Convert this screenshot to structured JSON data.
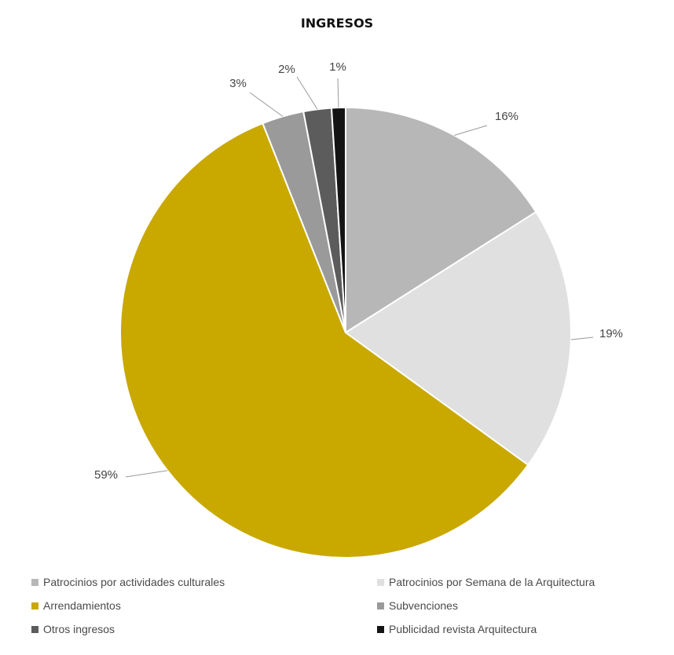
{
  "chart_data": {
    "type": "pie",
    "title": "INGRESOS",
    "start_angle_deg": 0,
    "direction": "clockwise",
    "slices": [
      {
        "name": "Patrocinios por actividades culturales",
        "value": 16,
        "label": "16%",
        "color": "#b7b7b7"
      },
      {
        "name": "Patrocinios por Semana de la Arquitectura",
        "value": 19,
        "label": "19%",
        "color": "#e0e0e0"
      },
      {
        "name": "Arrendamientos",
        "value": 59,
        "label": "59%",
        "color": "#c9a800"
      },
      {
        "name": "Subvenciones",
        "value": 3,
        "label": "3%",
        "color": "#9a9a9a"
      },
      {
        "name": "Otros ingresos",
        "value": 2,
        "label": "2%",
        "color": "#5c5c5c"
      },
      {
        "name": "Publicidad revista Arquitectura",
        "value": 1,
        "label": "1%",
        "color": "#141414"
      }
    ],
    "legend_position": "bottom"
  }
}
